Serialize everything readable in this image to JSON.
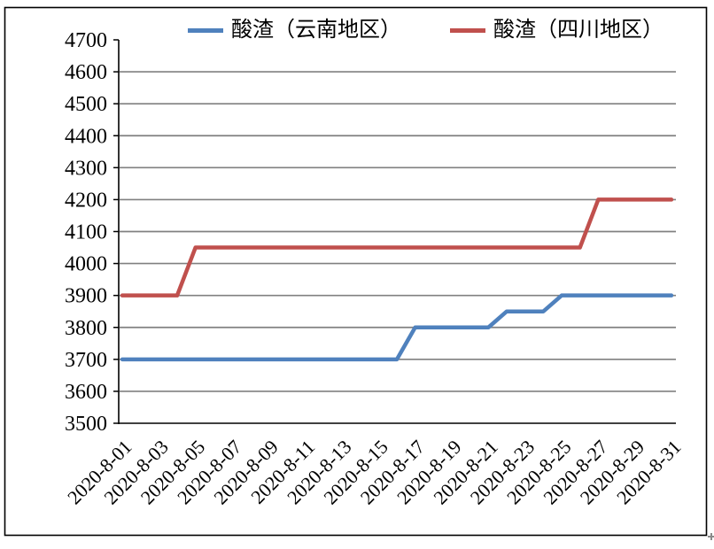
{
  "chart_data": {
    "type": "line",
    "title": "",
    "xlabel": "",
    "ylabel": "",
    "ylim": [
      3500,
      4700
    ],
    "ytick_step": 100,
    "ytick_labels": [
      4700,
      4600,
      4500,
      4400,
      4300,
      4200,
      4100,
      4000,
      3900,
      3800,
      3700,
      3600,
      3500
    ],
    "x": [
      "2020-8-01",
      "2020-8-02",
      "2020-8-03",
      "2020-8-04",
      "2020-8-05",
      "2020-8-06",
      "2020-8-07",
      "2020-8-08",
      "2020-8-09",
      "2020-8-10",
      "2020-8-11",
      "2020-8-12",
      "2020-8-13",
      "2020-8-14",
      "2020-8-15",
      "2020-8-16",
      "2020-8-17",
      "2020-8-18",
      "2020-8-19",
      "2020-8-20",
      "2020-8-21",
      "2020-8-22",
      "2020-8-23",
      "2020-8-24",
      "2020-8-25",
      "2020-8-26",
      "2020-8-27",
      "2020-8-28",
      "2020-8-29",
      "2020-8-30",
      "2020-8-31"
    ],
    "xtick_labels": [
      "2020-8-01",
      "2020-8-03",
      "2020-8-05",
      "2020-8-07",
      "2020-8-09",
      "2020-8-11",
      "2020-8-13",
      "2020-8-15",
      "2020-8-17",
      "2020-8-19",
      "2020-8-21",
      "2020-8-23",
      "2020-8-25",
      "2020-8-27",
      "2020-8-29",
      "2020-8-31"
    ],
    "series": [
      {
        "name": "酸渣（云南地区）",
        "color": "#4F81BD",
        "values": [
          3700,
          3700,
          3700,
          3700,
          3700,
          3700,
          3700,
          3700,
          3700,
          3700,
          3700,
          3700,
          3700,
          3700,
          3700,
          3700,
          3800,
          3800,
          3800,
          3800,
          3800,
          3850,
          3850,
          3850,
          3900,
          3900,
          3900,
          3900,
          3900,
          3900,
          3900
        ]
      },
      {
        "name": "酸渣（四川地区）",
        "color": "#C0504D",
        "values": [
          3900,
          3900,
          3900,
          3900,
          4050,
          4050,
          4050,
          4050,
          4050,
          4050,
          4050,
          4050,
          4050,
          4050,
          4050,
          4050,
          4050,
          4050,
          4050,
          4050,
          4050,
          4050,
          4050,
          4050,
          4050,
          4050,
          4200,
          4200,
          4200,
          4200,
          4200
        ]
      }
    ],
    "grid": true,
    "legend_position": "top"
  },
  "legend": {
    "items": [
      {
        "label": "酸渣（云南地区）",
        "color": "#4F81BD"
      },
      {
        "label": "酸渣（四川地区）",
        "color": "#C0504D"
      }
    ]
  },
  "colors": {
    "axis": "#000000",
    "gridline": "#808080",
    "border": "#000000",
    "background": "#FFFFFF",
    "corner_mark": "#8A8A8A"
  }
}
